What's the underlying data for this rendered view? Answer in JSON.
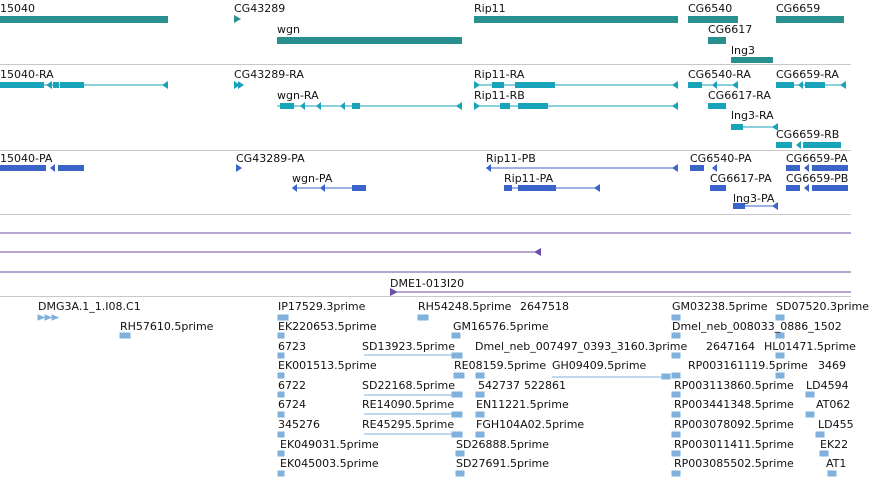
{
  "colors": {
    "gene": "#2a8f8f",
    "transcript": "#17a3b8",
    "protein": "#3a64c9",
    "contig": "#6b4fa6",
    "est": "#7fb1dc"
  },
  "genes": [
    {
      "label": "15040"
    },
    {
      "label": "CG43289"
    },
    {
      "label": "wgn"
    },
    {
      "label": "Rip11"
    },
    {
      "label": "CG6540"
    },
    {
      "label": "CG6659"
    },
    {
      "label": "CG6617"
    },
    {
      "label": "lng3"
    }
  ],
  "transcripts": [
    {
      "label": "15040-RA"
    },
    {
      "label": "CG43289-RA"
    },
    {
      "label": "wgn-RA"
    },
    {
      "label": "Rip11-RA"
    },
    {
      "label": "Rip11-RB"
    },
    {
      "label": "CG6540-RA"
    },
    {
      "label": "CG6659-RA"
    },
    {
      "label": "CG6617-RA"
    },
    {
      "label": "lng3-RA"
    },
    {
      "label": "CG6659-RB"
    }
  ],
  "proteins": [
    {
      "label": "15040-PA"
    },
    {
      "label": "CG43289-PA"
    },
    {
      "label": "wgn-PA"
    },
    {
      "label": "Rip11-PB"
    },
    {
      "label": "Rip11-PA"
    },
    {
      "label": "CG6540-PA"
    },
    {
      "label": "CG6659-PA"
    },
    {
      "label": "CG6617-PA"
    },
    {
      "label": "CG6659-PB"
    },
    {
      "label": "lng3-PA"
    }
  ],
  "contig": {
    "label": "DME1-013I20"
  },
  "ests": [
    {
      "label": "DMG3A.1_1.I08.C1"
    },
    {
      "label": "RH57610.5prime"
    },
    {
      "label": "IP17529.3prime"
    },
    {
      "label": "EK220653.5prime"
    },
    {
      "label": "6723"
    },
    {
      "label": "EK001513.5prime"
    },
    {
      "label": "6722"
    },
    {
      "label": "6724"
    },
    {
      "label": "345276"
    },
    {
      "label": "EK049031.5prime"
    },
    {
      "label": "EK045003.5prime"
    },
    {
      "label": "RH54248.5prime"
    },
    {
      "label": "2647518"
    },
    {
      "label": "GM16576.5prime"
    },
    {
      "label": "SD13923.5prime"
    },
    {
      "label": "Dmel_neb_007497_0393_3160.3prime"
    },
    {
      "label": "RE08159.5prime"
    },
    {
      "label": "GH09409.5prime"
    },
    {
      "label": "SD22168.5prime"
    },
    {
      "label": "542737"
    },
    {
      "label": "522861"
    },
    {
      "label": "RE14090.5prime"
    },
    {
      "label": "EN11221.5prime"
    },
    {
      "label": "RE45295.5prime"
    },
    {
      "label": "FGH104A02.5prime"
    },
    {
      "label": "SD26888.5prime"
    },
    {
      "label": "SD27691.5prime"
    },
    {
      "label": "GM03238.5prime"
    },
    {
      "label": "SD07520.3prime"
    },
    {
      "label": "Dmel_neb_008033_0886_1502"
    },
    {
      "label": "2647164"
    },
    {
      "label": "HL01471.5prime"
    },
    {
      "label": "RP003161119.5prime"
    },
    {
      "label": "3469"
    },
    {
      "label": "RP003113860.5prime"
    },
    {
      "label": "LD4594"
    },
    {
      "label": "RP003441348.5prime"
    },
    {
      "label": "AT062"
    },
    {
      "label": "RP003078092.5prime"
    },
    {
      "label": "LD455"
    },
    {
      "label": "RP003011411.5prime"
    },
    {
      "label": "EK22"
    },
    {
      "label": "RP003085502.5prime"
    },
    {
      "label": "AT1"
    }
  ]
}
